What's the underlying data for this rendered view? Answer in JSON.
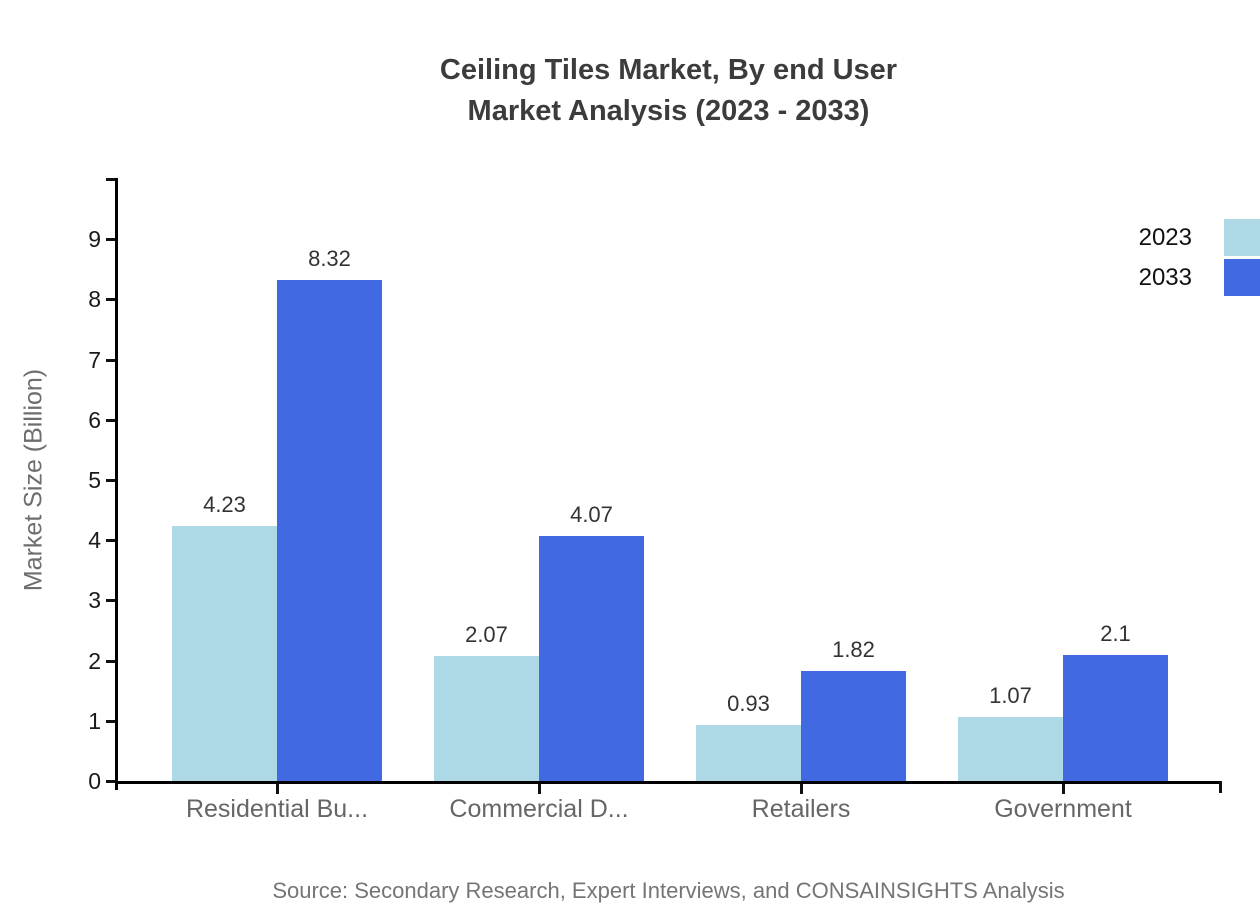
{
  "chart": {
    "title_line1": "Ceiling Tiles Market, By end User",
    "title_line2": "Market Analysis (2023 - 2033)",
    "source": "Source: Secondary Research, Expert Interviews, and CONSAINSIGHTS Analysis"
  },
  "chart_data": {
    "type": "bar",
    "title": "Ceiling Tiles Market, By end User Market Analysis (2023 - 2033)",
    "categories": [
      "Residential Bu...",
      "Commercial D...",
      "Retailers",
      "Government"
    ],
    "series": [
      {
        "name": "2023",
        "color": "#ADD8E6",
        "values": [
          4.23,
          2.07,
          0.93,
          1.07
        ]
      },
      {
        "name": "2033",
        "color": "#4169E1",
        "values": [
          8.32,
          4.07,
          1.82,
          2.1
        ]
      }
    ],
    "xlabel": "",
    "ylabel": "Market Size (Billion)",
    "ylim": [
      0,
      10
    ],
    "yticks": [
      0,
      1,
      2,
      3,
      4,
      5,
      6,
      7,
      8,
      9
    ],
    "grid": false,
    "legend_position": "top-right",
    "value_labels": true,
    "axis_color": "#000000",
    "tick_label_color": "#1a1a1a",
    "category_label_color": "#666666",
    "value_label_color": "#333333",
    "title_color": "#3c3c3c"
  }
}
